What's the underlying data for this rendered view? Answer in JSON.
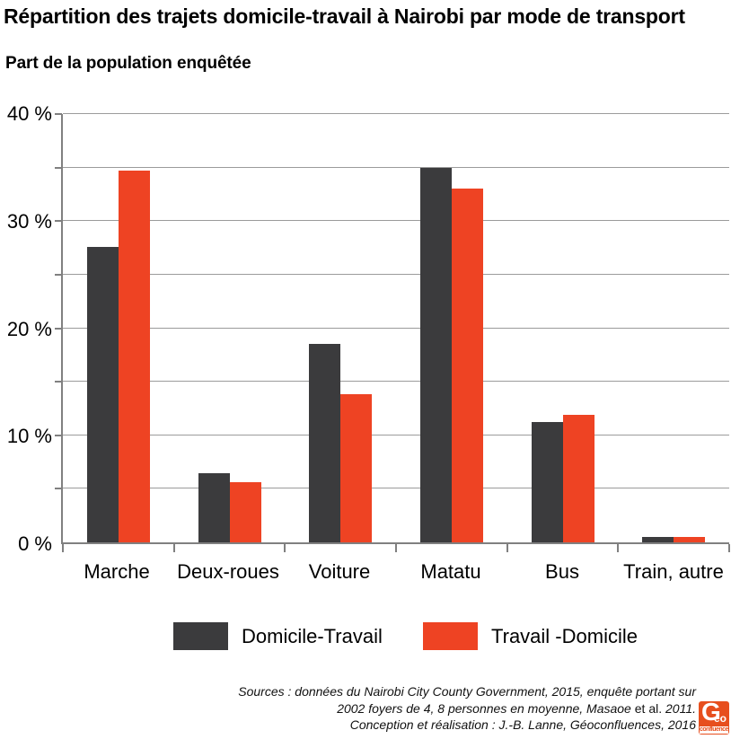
{
  "header": {
    "title": "Répartition des trajets domicile-travail à Nairobi par mode de transport",
    "subtitle": "Part de la population enquêtée"
  },
  "chart_data": {
    "type": "bar",
    "title": "Répartition des trajets domicile-travail à Nairobi par mode de transport",
    "subtitle": "Part de la population enquêtée",
    "categories": [
      "Marche",
      "Deux-roues",
      "Voiture",
      "Matatu",
      "Bus",
      "Train, autre"
    ],
    "series": [
      {
        "name": "Domicile-Travail",
        "color": "#3b3b3d",
        "values": [
          27.6,
          6.5,
          18.5,
          35.0,
          11.2,
          0.5
        ]
      },
      {
        "name": "Travail -Domicile",
        "color": "#ee4323",
        "values": [
          34.7,
          5.6,
          13.8,
          33.0,
          11.9,
          0.5
        ]
      }
    ],
    "ylabel": "Part de la population enquêtée",
    "xlabel": "",
    "ylim": [
      0,
      40
    ],
    "yticks": [
      {
        "v": 0,
        "label": "0 %"
      },
      {
        "v": 10,
        "label": "10 %"
      },
      {
        "v": 20,
        "label": "20 %"
      },
      {
        "v": 30,
        "label": "30 %"
      },
      {
        "v": 40,
        "label": "40 %"
      }
    ],
    "minor_gridline_step": 5,
    "grid": "horizontal",
    "legend_position": "bottom",
    "colors": {
      "gridline": "#9b9b9b",
      "axis": "#808080"
    }
  },
  "footer": {
    "line1": "Sources : données du Nairobi City County Government, 2015, enquête portant sur",
    "line2_italic": "2002 foyers de 4, 8 personnes en moyenne, Masaoe",
    "line2_upright": "et al.",
    "line2_end": "2011.",
    "line3": "Conception et réalisation : J.-B. Lanne, Géoconfluences, 2016",
    "logo": {
      "letter": "G",
      "accent": "éo",
      "sub": "confluences"
    }
  }
}
